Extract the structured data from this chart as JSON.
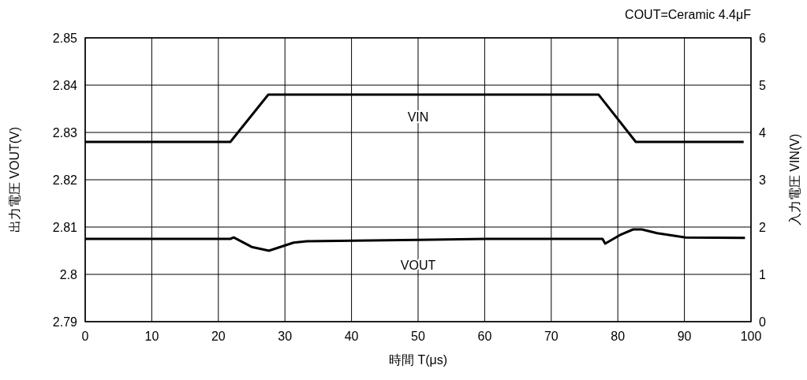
{
  "chart_data": {
    "type": "line",
    "xlabel": "時間 T(μs)",
    "ylabel": "出力電圧 VOUT(V)",
    "y2label": "入力電圧 VIN(V)",
    "annotations": [
      "COUT=Ceramic 4.4μF"
    ],
    "xlim": [
      0,
      100
    ],
    "xticks": [
      0,
      10,
      20,
      30,
      40,
      50,
      60,
      70,
      80,
      90,
      100
    ],
    "ylim": [
      2.79,
      2.85
    ],
    "yticks": [
      2.79,
      2.8,
      2.81,
      2.82,
      2.83,
      2.84,
      2.85
    ],
    "y2lim": [
      0,
      6
    ],
    "y2ticks": [
      0,
      1,
      2,
      3,
      4,
      5,
      6
    ],
    "grid": true,
    "line_style": "solid",
    "series": [
      {
        "name": "VIN",
        "color": "#000000",
        "axis": "y2",
        "x": [
          0,
          21.8,
          27.5,
          77.1,
          82.7,
          98.9
        ],
        "values": [
          3.8,
          3.8,
          4.8,
          4.8,
          3.8,
          3.8
        ]
      },
      {
        "name": "VOUT",
        "color": "#000000",
        "x": [
          0,
          21.8,
          22.3,
          25.0,
          27.6,
          31.3,
          33.3,
          50.1,
          60.3,
          77.7,
          78.1,
          80.3,
          82.3,
          83.6,
          85.9,
          90.2,
          99.1
        ],
        "values": [
          2.8075,
          2.8075,
          2.8078,
          2.8058,
          2.805,
          2.8067,
          2.807,
          2.8073,
          2.8075,
          2.8075,
          2.8065,
          2.8083,
          2.8095,
          2.8095,
          2.8087,
          2.8078,
          2.8077
        ]
      }
    ]
  }
}
